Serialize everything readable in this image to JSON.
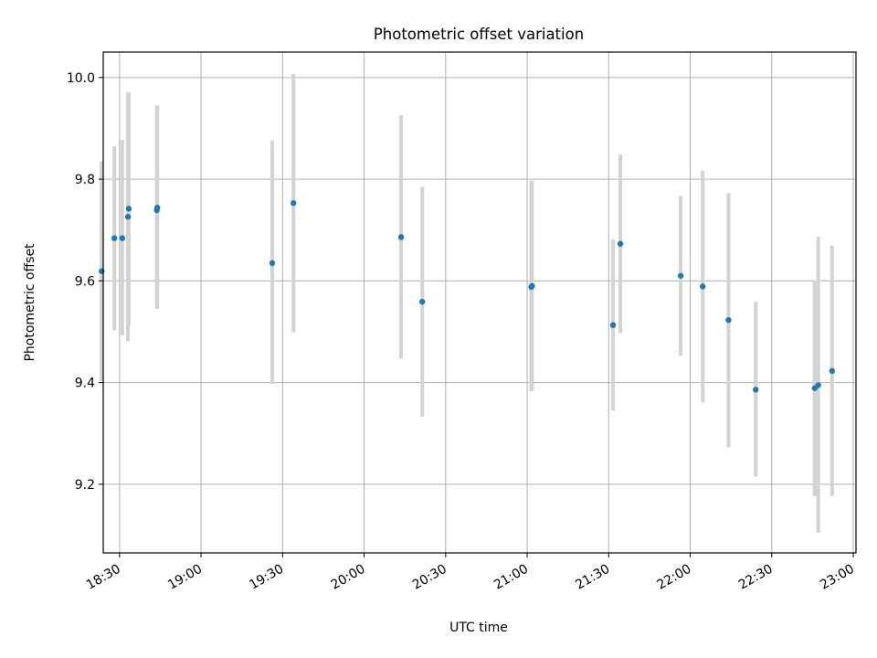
{
  "chart_data": {
    "type": "scatter",
    "title": "Photometric offset variation",
    "xlabel": "UTC time",
    "ylabel": "Photometric offset",
    "xlim": [
      1104,
      1381
    ],
    "ylim": [
      9.065,
      10.05
    ],
    "grid": true,
    "xticks": [
      {
        "value": 1110,
        "label": "18:30"
      },
      {
        "value": 1140,
        "label": "19:00"
      },
      {
        "value": 1170,
        "label": "19:30"
      },
      {
        "value": 1200,
        "label": "20:00"
      },
      {
        "value": 1230,
        "label": "20:30"
      },
      {
        "value": 1260,
        "label": "21:00"
      },
      {
        "value": 1290,
        "label": "21:30"
      },
      {
        "value": 1320,
        "label": "22:00"
      },
      {
        "value": 1350,
        "label": "22:30"
      },
      {
        "value": 1380,
        "label": "23:00"
      }
    ],
    "yticks": [
      {
        "value": 9.2,
        "label": "9.2"
      },
      {
        "value": 9.4,
        "label": "9.4"
      },
      {
        "value": 9.6,
        "label": "9.6"
      },
      {
        "value": 9.8,
        "label": "9.8"
      },
      {
        "value": 10.0,
        "label": "10.0"
      }
    ],
    "series": [
      {
        "name": "offset",
        "color": "#1f77b4",
        "errorbar_color": "#d3d3d3",
        "points": [
          {
            "x": 1103.4,
            "y": 9.619,
            "yerr_low": 9.403,
            "yerr_high": 9.835
          },
          {
            "x": 1108.1,
            "y": 9.684,
            "yerr_low": 9.503,
            "yerr_high": 9.865
          },
          {
            "x": 1111.0,
            "y": 9.684,
            "yerr_low": 9.493,
            "yerr_high": 9.877
          },
          {
            "x": 1113.1,
            "y": 9.726,
            "yerr_low": 9.481,
            "yerr_high": 9.971
          },
          {
            "x": 1113.4,
            "y": 9.742,
            "yerr_low": 9.513,
            "yerr_high": 9.971
          },
          {
            "x": 1123.7,
            "y": 9.739,
            "yerr_low": 9.545,
            "yerr_high": 9.945
          },
          {
            "x": 1123.9,
            "y": 9.744,
            "yerr_low": 9.545,
            "yerr_high": 9.945
          },
          {
            "x": 1166.2,
            "y": 9.635,
            "yerr_low": 9.397,
            "yerr_high": 9.876
          },
          {
            "x": 1174.0,
            "y": 9.753,
            "yerr_low": 9.499,
            "yerr_high": 10.007
          },
          {
            "x": 1213.6,
            "y": 9.686,
            "yerr_low": 9.447,
            "yerr_high": 9.926
          },
          {
            "x": 1221.4,
            "y": 9.559,
            "yerr_low": 9.333,
            "yerr_high": 9.785
          },
          {
            "x": 1261.5,
            "y": 9.588,
            "yerr_low": 9.383,
            "yerr_high": 9.797
          },
          {
            "x": 1261.8,
            "y": 9.59,
            "yerr_low": 9.383,
            "yerr_high": 9.797
          },
          {
            "x": 1291.6,
            "y": 9.513,
            "yerr_low": 9.345,
            "yerr_high": 9.681
          },
          {
            "x": 1294.3,
            "y": 9.673,
            "yerr_low": 9.497,
            "yerr_high": 9.849
          },
          {
            "x": 1316.5,
            "y": 9.61,
            "yerr_low": 9.453,
            "yerr_high": 9.767
          },
          {
            "x": 1324.6,
            "y": 9.589,
            "yerr_low": 9.361,
            "yerr_high": 9.817
          },
          {
            "x": 1334.1,
            "y": 9.523,
            "yerr_low": 9.273,
            "yerr_high": 9.773
          },
          {
            "x": 1344.1,
            "y": 9.386,
            "yerr_low": 9.215,
            "yerr_high": 9.559
          },
          {
            "x": 1365.8,
            "y": 9.389,
            "yerr_low": 9.177,
            "yerr_high": 9.601
          },
          {
            "x": 1367.1,
            "y": 9.395,
            "yerr_low": 9.105,
            "yerr_high": 9.687
          },
          {
            "x": 1372.2,
            "y": 9.423,
            "yerr_low": 9.177,
            "yerr_high": 9.669
          }
        ]
      }
    ]
  }
}
